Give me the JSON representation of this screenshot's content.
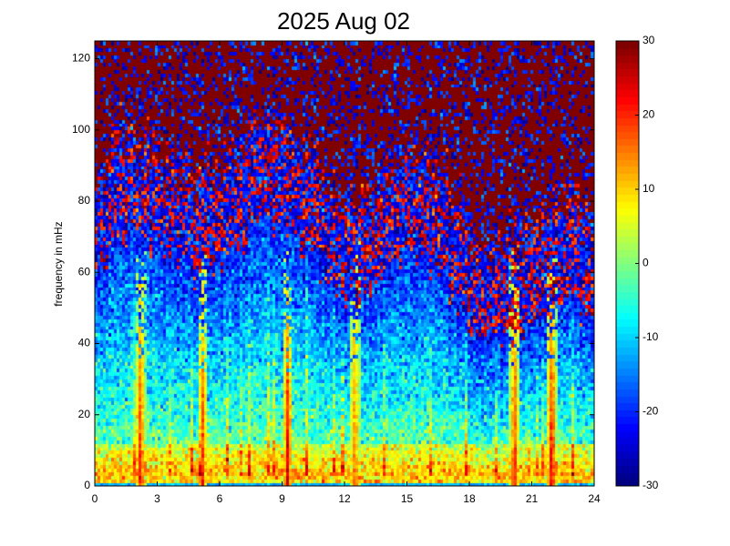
{
  "chart_data": {
    "type": "heatmap",
    "title": "2025 Aug 02",
    "xlabel": "",
    "ylabel": "frequency in mHz",
    "xlim": [
      0,
      24
    ],
    "ylim": [
      0,
      125
    ],
    "x_ticks": [
      "0",
      "3",
      "6",
      "9",
      "12",
      "15",
      "18",
      "21",
      "24"
    ],
    "y_ticks": [
      "0",
      "20",
      "40",
      "60",
      "80",
      "100",
      "120"
    ],
    "colorbar": {
      "range": [
        -30,
        30
      ],
      "ticks": [
        "-30",
        "-20",
        "-10",
        "0",
        "10",
        "20",
        "30"
      ],
      "colormap": "jet"
    },
    "background_level": 30,
    "features": [
      {
        "x": 2.2,
        "level": 24
      },
      {
        "x": 5.2,
        "level": 22
      },
      {
        "x": 9.3,
        "level": 26
      },
      {
        "x": 12.5,
        "level": 18
      },
      {
        "x": 20.2,
        "level": 24
      },
      {
        "x": 22.0,
        "level": 28
      }
    ]
  }
}
